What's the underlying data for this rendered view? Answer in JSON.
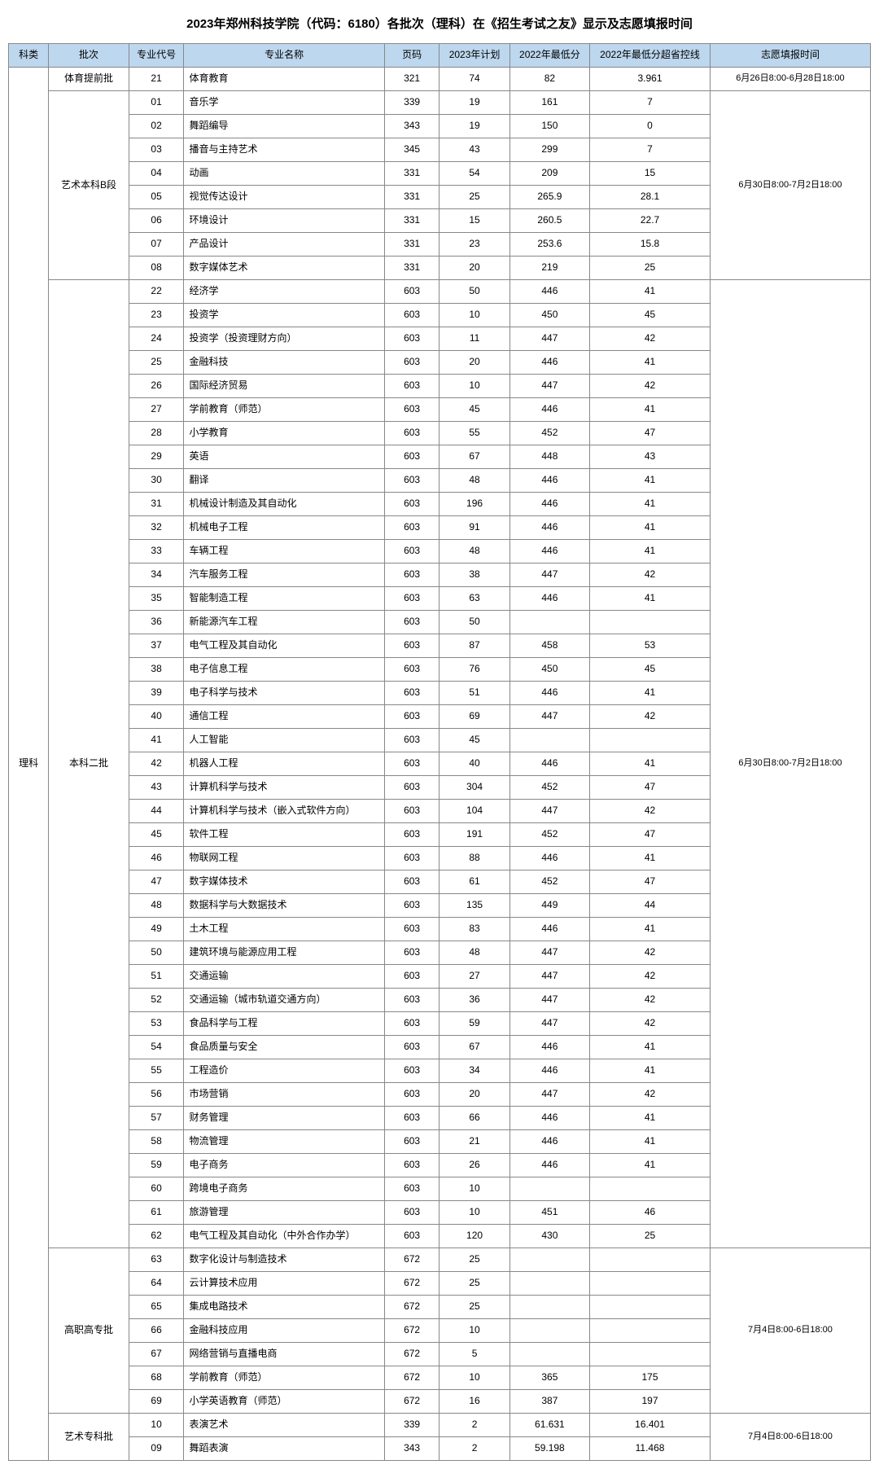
{
  "title": "2023年郑州科技学院（代码：6180）各批次（理科）在《招生考试之友》显示及志愿填报时间",
  "header": {
    "category": "科类",
    "batch": "批次",
    "major_code": "专业代号",
    "major_name": "专业名称",
    "page": "页码",
    "plan2023": "2023年计划",
    "min2022": "2022年最低分",
    "diff2022": "2022年最低分超省控线",
    "time": "志愿填报时间"
  },
  "category_label": "理科",
  "groups": [
    {
      "batch": "体育提前批",
      "time": "6月26日8:00-6月28日18:00",
      "rows": [
        {
          "code": "21",
          "name": "体育教育",
          "page": "321",
          "plan": "74",
          "min": "82",
          "diff": "3.961"
        }
      ]
    },
    {
      "batch": "艺术本科B段",
      "time": "6月30日8:00-7月2日18:00",
      "rows": [
        {
          "code": "01",
          "name": "音乐学",
          "page": "339",
          "plan": "19",
          "min": "161",
          "diff": "7"
        },
        {
          "code": "02",
          "name": "舞蹈编导",
          "page": "343",
          "plan": "19",
          "min": "150",
          "diff": "0"
        },
        {
          "code": "03",
          "name": "播音与主持艺术",
          "page": "345",
          "plan": "43",
          "min": "299",
          "diff": "7"
        },
        {
          "code": "04",
          "name": "动画",
          "page": "331",
          "plan": "54",
          "min": "209",
          "diff": "15"
        },
        {
          "code": "05",
          "name": "视觉传达设计",
          "page": "331",
          "plan": "25",
          "min": "265.9",
          "diff": "28.1"
        },
        {
          "code": "06",
          "name": "环境设计",
          "page": "331",
          "plan": "15",
          "min": "260.5",
          "diff": "22.7"
        },
        {
          "code": "07",
          "name": "产品设计",
          "page": "331",
          "plan": "23",
          "min": "253.6",
          "diff": "15.8"
        },
        {
          "code": "08",
          "name": "数字媒体艺术",
          "page": "331",
          "plan": "20",
          "min": "219",
          "diff": "25"
        }
      ]
    },
    {
      "batch": "本科二批",
      "time": "6月30日8:00-7月2日18:00",
      "rows": [
        {
          "code": "22",
          "name": "经济学",
          "page": "603",
          "plan": "50",
          "min": "446",
          "diff": "41"
        },
        {
          "code": "23",
          "name": "投资学",
          "page": "603",
          "plan": "10",
          "min": "450",
          "diff": "45"
        },
        {
          "code": "24",
          "name": "投资学（投资理财方向）",
          "page": "603",
          "plan": "11",
          "min": "447",
          "diff": "42"
        },
        {
          "code": "25",
          "name": "金融科技",
          "page": "603",
          "plan": "20",
          "min": "446",
          "diff": "41"
        },
        {
          "code": "26",
          "name": "国际经济贸易",
          "page": "603",
          "plan": "10",
          "min": "447",
          "diff": "42"
        },
        {
          "code": "27",
          "name": "学前教育（师范）",
          "page": "603",
          "plan": "45",
          "min": "446",
          "diff": "41"
        },
        {
          "code": "28",
          "name": "小学教育",
          "page": "603",
          "plan": "55",
          "min": "452",
          "diff": "47"
        },
        {
          "code": "29",
          "name": "英语",
          "page": "603",
          "plan": "67",
          "min": "448",
          "diff": "43"
        },
        {
          "code": "30",
          "name": "翻译",
          "page": "603",
          "plan": "48",
          "min": "446",
          "diff": "41"
        },
        {
          "code": "31",
          "name": "机械设计制造及其自动化",
          "page": "603",
          "plan": "196",
          "min": "446",
          "diff": "41"
        },
        {
          "code": "32",
          "name": "机械电子工程",
          "page": "603",
          "plan": "91",
          "min": "446",
          "diff": "41"
        },
        {
          "code": "33",
          "name": "车辆工程",
          "page": "603",
          "plan": "48",
          "min": "446",
          "diff": "41"
        },
        {
          "code": "34",
          "name": "汽车服务工程",
          "page": "603",
          "plan": "38",
          "min": "447",
          "diff": "42"
        },
        {
          "code": "35",
          "name": "智能制造工程",
          "page": "603",
          "plan": "63",
          "min": "446",
          "diff": "41"
        },
        {
          "code": "36",
          "name": "新能源汽车工程",
          "page": "603",
          "plan": "50",
          "min": "",
          "diff": ""
        },
        {
          "code": "37",
          "name": "电气工程及其自动化",
          "page": "603",
          "plan": "87",
          "min": "458",
          "diff": "53"
        },
        {
          "code": "38",
          "name": "电子信息工程",
          "page": "603",
          "plan": "76",
          "min": "450",
          "diff": "45"
        },
        {
          "code": "39",
          "name": "电子科学与技术",
          "page": "603",
          "plan": "51",
          "min": "446",
          "diff": "41"
        },
        {
          "code": "40",
          "name": "通信工程",
          "page": "603",
          "plan": "69",
          "min": "447",
          "diff": "42"
        },
        {
          "code": "41",
          "name": "人工智能",
          "page": "603",
          "plan": "45",
          "min": "",
          "diff": ""
        },
        {
          "code": "42",
          "name": "机器人工程",
          "page": "603",
          "plan": "40",
          "min": "446",
          "diff": "41"
        },
        {
          "code": "43",
          "name": "计算机科学与技术",
          "page": "603",
          "plan": "304",
          "min": "452",
          "diff": "47"
        },
        {
          "code": "44",
          "name": "计算机科学与技术（嵌入式软件方向）",
          "page": "603",
          "plan": "104",
          "min": "447",
          "diff": "42"
        },
        {
          "code": "45",
          "name": "软件工程",
          "page": "603",
          "plan": "191",
          "min": "452",
          "diff": "47"
        },
        {
          "code": "46",
          "name": "物联网工程",
          "page": "603",
          "plan": "88",
          "min": "446",
          "diff": "41"
        },
        {
          "code": "47",
          "name": "数字媒体技术",
          "page": "603",
          "plan": "61",
          "min": "452",
          "diff": "47"
        },
        {
          "code": "48",
          "name": "数据科学与大数据技术",
          "page": "603",
          "plan": "135",
          "min": "449",
          "diff": "44"
        },
        {
          "code": "49",
          "name": "土木工程",
          "page": "603",
          "plan": "83",
          "min": "446",
          "diff": "41"
        },
        {
          "code": "50",
          "name": "建筑环境与能源应用工程",
          "page": "603",
          "plan": "48",
          "min": "447",
          "diff": "42"
        },
        {
          "code": "51",
          "name": "交通运输",
          "page": "603",
          "plan": "27",
          "min": "447",
          "diff": "42"
        },
        {
          "code": "52",
          "name": "交通运输（城市轨道交通方向）",
          "page": "603",
          "plan": "36",
          "min": "447",
          "diff": "42"
        },
        {
          "code": "53",
          "name": "食品科学与工程",
          "page": "603",
          "plan": "59",
          "min": "447",
          "diff": "42"
        },
        {
          "code": "54",
          "name": "食品质量与安全",
          "page": "603",
          "plan": "67",
          "min": "446",
          "diff": "41"
        },
        {
          "code": "55",
          "name": "工程造价",
          "page": "603",
          "plan": "34",
          "min": "446",
          "diff": "41"
        },
        {
          "code": "56",
          "name": "市场营销",
          "page": "603",
          "plan": "20",
          "min": "447",
          "diff": "42"
        },
        {
          "code": "57",
          "name": "财务管理",
          "page": "603",
          "plan": "66",
          "min": "446",
          "diff": "41"
        },
        {
          "code": "58",
          "name": "物流管理",
          "page": "603",
          "plan": "21",
          "min": "446",
          "diff": "41"
        },
        {
          "code": "59",
          "name": "电子商务",
          "page": "603",
          "plan": "26",
          "min": "446",
          "diff": "41"
        },
        {
          "code": "60",
          "name": "跨境电子商务",
          "page": "603",
          "plan": "10",
          "min": "",
          "diff": ""
        },
        {
          "code": "61",
          "name": "旅游管理",
          "page": "603",
          "plan": "10",
          "min": "451",
          "diff": "46"
        },
        {
          "code": "62",
          "name": "电气工程及其自动化（中外合作办学）",
          "page": "603",
          "plan": "120",
          "min": "430",
          "diff": "25"
        }
      ]
    },
    {
      "batch": "高职高专批",
      "time": "7月4日8:00-6日18:00",
      "rows": [
        {
          "code": "63",
          "name": "数字化设计与制造技术",
          "page": "672",
          "plan": "25",
          "min": "",
          "diff": ""
        },
        {
          "code": "64",
          "name": "云计算技术应用",
          "page": "672",
          "plan": "25",
          "min": "",
          "diff": ""
        },
        {
          "code": "65",
          "name": "集成电路技术",
          "page": "672",
          "plan": "25",
          "min": "",
          "diff": ""
        },
        {
          "code": "66",
          "name": "金融科技应用",
          "page": "672",
          "plan": "10",
          "min": "",
          "diff": ""
        },
        {
          "code": "67",
          "name": "网络营销与直播电商",
          "page": "672",
          "plan": "5",
          "min": "",
          "diff": ""
        },
        {
          "code": "68",
          "name": "学前教育（师范）",
          "page": "672",
          "plan": "10",
          "min": "365",
          "diff": "175"
        },
        {
          "code": "69",
          "name": "小学英语教育（师范）",
          "page": "672",
          "plan": "16",
          "min": "387",
          "diff": "197"
        }
      ]
    },
    {
      "batch": "艺术专科批",
      "time": "7月4日8:00-6日18:00",
      "rows": [
        {
          "code": "10",
          "name": "表演艺术",
          "page": "339",
          "plan": "2",
          "min": "61.631",
          "diff": "16.401"
        },
        {
          "code": "09",
          "name": "舞蹈表演",
          "page": "343",
          "plan": "2",
          "min": "59.198",
          "diff": "11.468"
        }
      ]
    }
  ],
  "style": {
    "header_bg": "#bdd7ee",
    "border_color": "#888888",
    "title_fontsize": 15,
    "cell_fontsize": 12
  }
}
